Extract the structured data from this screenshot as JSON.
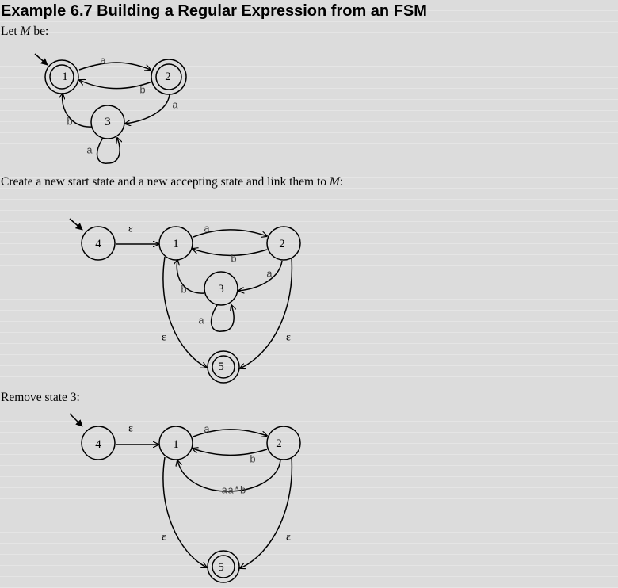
{
  "title": "Example 6.7 Building a Regular Expression from an FSM",
  "intro": {
    "before": "Let ",
    "var": "M",
    "after": " be:"
  },
  "step1": {
    "before": "Create a new start state and a new accepting state and link them to ",
    "var": "M",
    "after": ":"
  },
  "step2": {
    "text": "Remove state 3:"
  },
  "diagram1": {
    "states": {
      "s1": "1",
      "s2": "2",
      "s3": "3"
    },
    "labels": {
      "a_1_2": "a",
      "b_2_1": "b",
      "a_2_3": "a",
      "b_3_1": "b",
      "a_3_3": "a"
    }
  },
  "diagram2": {
    "states": {
      "s1": "1",
      "s2": "2",
      "s3": "3",
      "s4": "4",
      "s5": "5"
    },
    "labels": {
      "eps_4_1": "ε",
      "a_1_2": "a",
      "b_2_1": "b",
      "a_2_3": "a",
      "b_3_1": "b",
      "a_3_3": "a",
      "eps_1_5": "ε",
      "eps_2_5": "ε"
    }
  },
  "diagram3": {
    "states": {
      "s1": "1",
      "s2": "2",
      "s4": "4",
      "s5": "5"
    },
    "labels": {
      "eps_4_1": "ε",
      "a_1_2": "a",
      "b_2_1": "b",
      "aab_2_1": "aa*b",
      "eps_1_5": "ε",
      "eps_2_5": "ε"
    }
  }
}
